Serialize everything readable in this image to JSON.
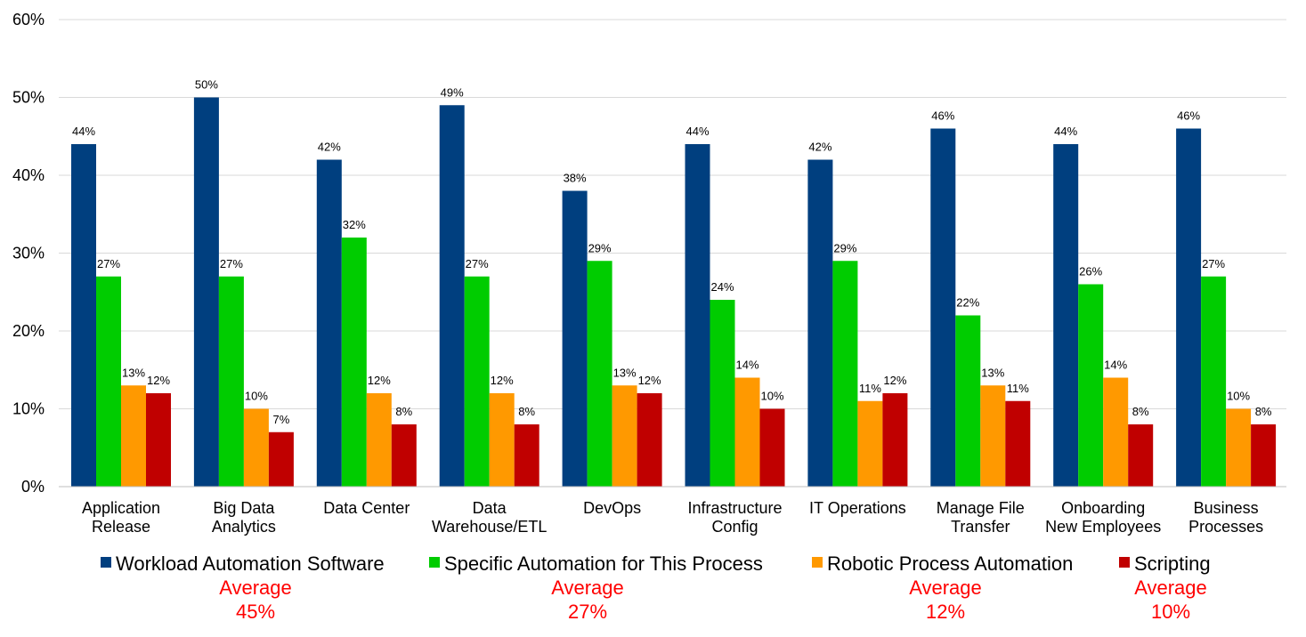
{
  "chart_data": {
    "type": "bar",
    "categories": [
      [
        "Application",
        "Release"
      ],
      [
        "Big Data",
        "Analytics"
      ],
      [
        "Data Center"
      ],
      [
        "Data",
        "Warehouse/ETL"
      ],
      [
        "DevOps"
      ],
      [
        "Infrastructure",
        "Config"
      ],
      [
        "IT Operations"
      ],
      [
        "Manage File",
        "Transfer"
      ],
      [
        "Onboarding",
        "New Employees"
      ],
      [
        "Business",
        "Processes"
      ]
    ],
    "series": [
      {
        "name": "Workload Automation Software",
        "color": "#003F7F",
        "values": [
          44,
          50,
          42,
          49,
          38,
          44,
          42,
          46,
          44,
          46
        ],
        "average_label": "Average",
        "average_value": "45%"
      },
      {
        "name": "Specific Automation for This Process",
        "color": "#00CC00",
        "values": [
          27,
          27,
          32,
          27,
          29,
          24,
          29,
          22,
          26,
          27
        ],
        "average_label": "Average",
        "average_value": "27%"
      },
      {
        "name": "Robotic Process Automation",
        "color": "#FF9900",
        "values": [
          13,
          10,
          12,
          12,
          13,
          14,
          11,
          13,
          14,
          10
        ],
        "average_label": "Average",
        "average_value": "12%"
      },
      {
        "name": "Scripting",
        "color": "#C00000",
        "values": [
          12,
          7,
          8,
          8,
          12,
          10,
          12,
          11,
          8,
          8
        ],
        "average_label": "Average",
        "average_value": "10%"
      }
    ],
    "ylim": [
      0,
      60
    ],
    "yticks": [
      0,
      10,
      20,
      30,
      40,
      50,
      60
    ],
    "value_suffix": "%",
    "grid": true,
    "legend_position": "bottom",
    "average_color": "#FF0000",
    "gridline_color": "#D9D9D9",
    "title": "",
    "xlabel": "",
    "ylabel": ""
  }
}
